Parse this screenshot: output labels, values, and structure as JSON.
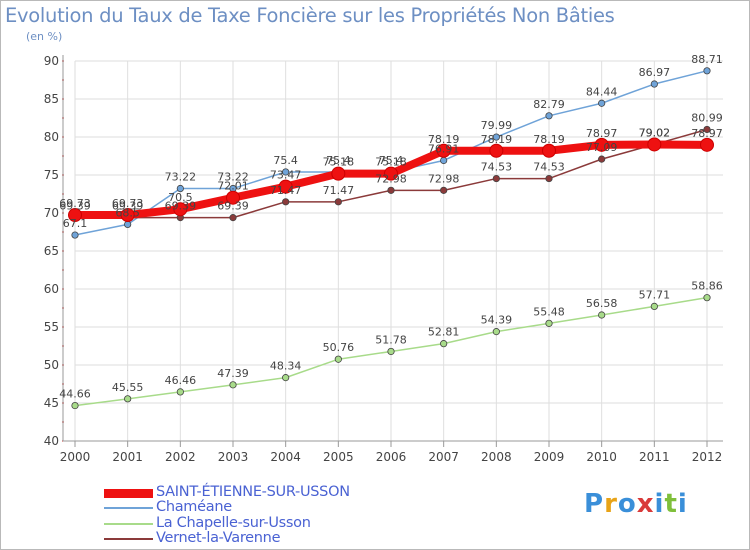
{
  "header": {
    "title": "Evolution du Taux de Taxe Foncière sur les Propriétés Non Bâties",
    "unit": "(en %)"
  },
  "logo": {
    "letters": [
      "P",
      "r",
      "o",
      "x",
      "i",
      "t",
      "i"
    ],
    "colors": [
      "#3a8fd9",
      "#e8a317",
      "#3a8fd9",
      "#d93a3a",
      "#3a8fd9",
      "#7fbf3a",
      "#3a8fd9"
    ]
  },
  "chart_data": {
    "type": "line",
    "x": [
      "2000",
      "2001",
      "2002",
      "2003",
      "2004",
      "2005",
      "2006",
      "2007",
      "2008",
      "2009",
      "2010",
      "2011",
      "2012"
    ],
    "ylim": [
      40,
      90
    ],
    "yticks": [
      40,
      45,
      50,
      55,
      60,
      65,
      70,
      75,
      80,
      85,
      90
    ],
    "grid": true,
    "legend_placement": "bottom-left",
    "series": [
      {
        "name": "SAINT-ÉTIENNE-SUR-USSON",
        "color": "#ee1111",
        "emphasis": true,
        "values": [
          69.73,
          69.73,
          70.5,
          72.01,
          73.47,
          75.18,
          75.18,
          78.19,
          78.19,
          78.19,
          78.97,
          79.02,
          78.97
        ],
        "labels": [
          "69.73",
          "69.73",
          "70.5",
          "72.01",
          "73.47",
          "75.18",
          "75.18",
          "78.19",
          "78.19",
          "78.19",
          "78.97",
          "79.02",
          "78.97"
        ]
      },
      {
        "name": "Chaméane",
        "color": "#6fa3d8",
        "values": [
          67.1,
          68.5,
          73.22,
          73.22,
          75.4,
          75.4,
          75.4,
          76.91,
          79.99,
          82.79,
          84.44,
          86.97,
          88.71
        ],
        "labels": [
          "67.1",
          "68.5",
          "73.22",
          "73.22",
          "75.4",
          "75.4",
          "75.4",
          "76.91",
          "79.99",
          "82.79",
          "84.44",
          "86.97",
          "88.71"
        ]
      },
      {
        "name": "La Chapelle-sur-Usson",
        "color": "#a8db8a",
        "values": [
          44.66,
          45.55,
          46.46,
          47.39,
          48.34,
          50.76,
          51.78,
          52.81,
          54.39,
          55.48,
          56.58,
          57.71,
          58.86
        ],
        "labels": [
          "44.66",
          "45.55",
          "46.46",
          "47.39",
          "48.34",
          "50.76",
          "51.78",
          "52.81",
          "54.39",
          "55.48",
          "56.58",
          "57.71",
          "58.86"
        ]
      },
      {
        "name": "Vernet-la-Varenne",
        "color": "#8b3a3a",
        "values": [
          69.39,
          69.39,
          69.39,
          69.39,
          71.47,
          71.47,
          72.98,
          72.98,
          74.53,
          74.53,
          77.09,
          79.02,
          80.99
        ],
        "labels": [
          "69.39",
          "69.39",
          "69.39",
          "69.39",
          "71.47",
          "71.47",
          "72.98",
          "72.98",
          "74.53",
          "74.53",
          "77.09",
          "79.02",
          "80.99"
        ]
      }
    ]
  }
}
